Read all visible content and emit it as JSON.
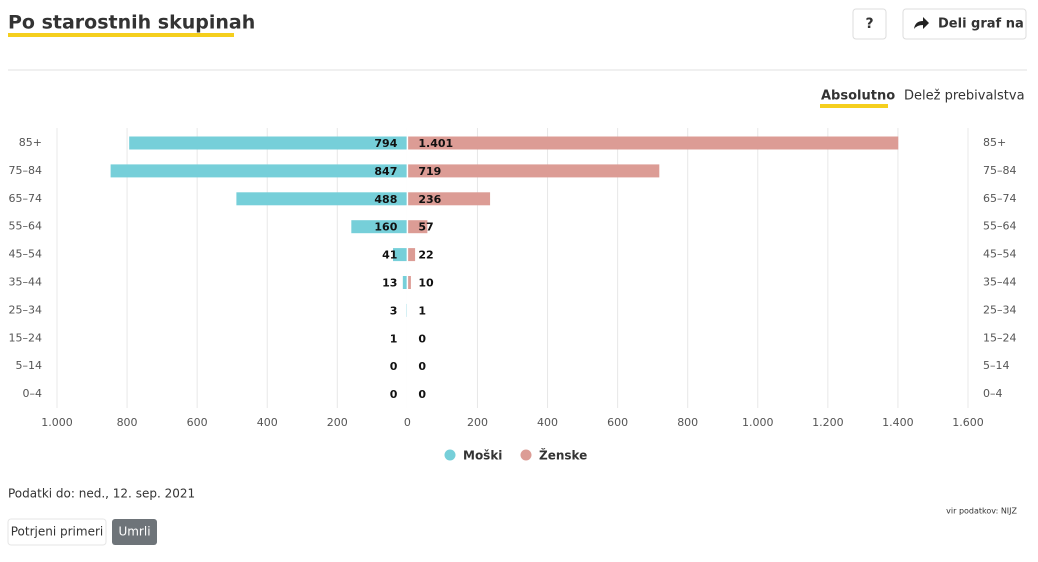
{
  "ui": {
    "help": "?",
    "share": "Deli graf na",
    "tabs": [
      "Absolutno",
      "Delež prebivalstva"
    ],
    "data_date": "Podatki do: ned., 12. sep. 2021",
    "source": "vir podatkov: NIJZ",
    "buttons": [
      "Potrjeni primeri",
      "Umrli"
    ]
  },
  "chart_data": {
    "type": "bar",
    "title": "Po starostnih skupinah",
    "categories": [
      "85+",
      "75–84",
      "65–74",
      "55–64",
      "45–54",
      "35–44",
      "25–34",
      "15–24",
      "5–14",
      "0–4"
    ],
    "series": [
      {
        "name": "Moški",
        "color": "#76cfd9",
        "values": [
          794,
          847,
          488,
          160,
          41,
          13,
          3,
          1,
          0,
          0
        ]
      },
      {
        "name": "Ženske",
        "color": "#dc9c95",
        "values": [
          1401,
          719,
          236,
          57,
          22,
          10,
          1,
          0,
          0,
          0
        ],
        "value_labels": [
          "1.401",
          "719",
          "236",
          "57",
          "22",
          "10",
          "1",
          "0",
          "0",
          "0"
        ]
      }
    ],
    "xlim": [
      -1000,
      1600
    ],
    "xticks": [
      {
        "value": -1000,
        "label": "1.000"
      },
      {
        "value": -800,
        "label": "800"
      },
      {
        "value": -600,
        "label": "600"
      },
      {
        "value": -400,
        "label": "400"
      },
      {
        "value": -200,
        "label": "200"
      },
      0,
      200,
      400,
      600,
      800,
      {
        "value": 1000,
        "label": "1.000"
      },
      {
        "value": 1200,
        "label": "1.200"
      },
      {
        "value": 1400,
        "label": "1.400"
      },
      {
        "value": 1600,
        "label": "1.600"
      }
    ],
    "grid": true
  }
}
